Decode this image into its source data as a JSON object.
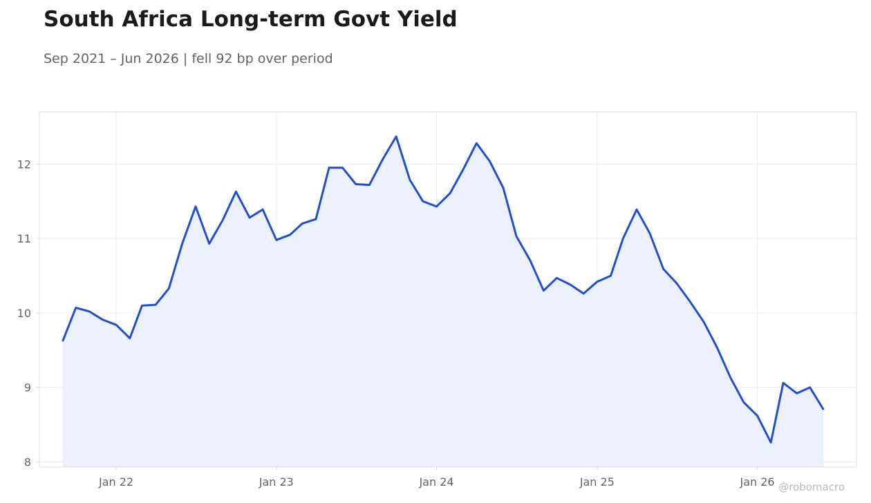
{
  "colors": {
    "line": "#1f4fd1",
    "fill": "#ebf0fb",
    "grid": "#ececec",
    "frame": "#dddddd",
    "text": "#5f6368"
  },
  "watermark": "@robomacro",
  "chart_data": {
    "type": "area",
    "title": "South Africa Long-term Govt Yield",
    "subtitle": "Sep 2021 – Jun 2026 | fell 92 bp over period",
    "xlabel": "",
    "ylabel": "",
    "ylim": [
      7.93,
      12.7
    ],
    "yticks": [
      8,
      9,
      10,
      11,
      12
    ],
    "xlim": [
      "2021-07-10",
      "2026-08-15"
    ],
    "xticks": [
      {
        "date": "2022-01-01",
        "label": "Jan 22"
      },
      {
        "date": "2023-01-01",
        "label": "Jan 23"
      },
      {
        "date": "2024-01-01",
        "label": "Jan 24"
      },
      {
        "date": "2025-01-01",
        "label": "Jan 25"
      },
      {
        "date": "2026-01-01",
        "label": "Jan 26"
      }
    ],
    "grid": true,
    "legend": "none",
    "series": [
      {
        "x": [
          "2021-09-01",
          "2021-10-01",
          "2021-11-01",
          "2021-12-01",
          "2022-01-01",
          "2022-02-01",
          "2022-03-01",
          "2022-04-01",
          "2022-05-01",
          "2022-06-01",
          "2022-07-01",
          "2022-08-01",
          "2022-09-01",
          "2022-10-01",
          "2022-11-01",
          "2022-12-01",
          "2023-01-01",
          "2023-02-01",
          "2023-03-01",
          "2023-04-01",
          "2023-05-01",
          "2023-06-01",
          "2023-07-01",
          "2023-08-01",
          "2023-09-01",
          "2023-10-01",
          "2023-11-01",
          "2023-12-01",
          "2024-01-01",
          "2024-02-01",
          "2024-03-01",
          "2024-04-01",
          "2024-05-01",
          "2024-06-01",
          "2024-07-01",
          "2024-08-01",
          "2024-09-01",
          "2024-10-01",
          "2024-11-01",
          "2024-12-01",
          "2025-01-01",
          "2025-02-01",
          "2025-03-01",
          "2025-04-01",
          "2025-05-01",
          "2025-06-01",
          "2025-07-01",
          "2025-08-01",
          "2025-09-01",
          "2025-10-01",
          "2025-11-01",
          "2025-12-01",
          "2026-01-01",
          "2026-02-01",
          "2026-03-01",
          "2026-04-01",
          "2026-05-01",
          "2026-06-01"
        ],
        "values": [
          9.62,
          10.07,
          10.02,
          9.91,
          9.84,
          9.66,
          10.1,
          10.11,
          10.33,
          10.94,
          11.43,
          10.93,
          11.25,
          11.63,
          11.28,
          11.39,
          10.98,
          11.05,
          11.2,
          11.26,
          11.95,
          11.95,
          11.73,
          11.72,
          12.07,
          12.37,
          11.79,
          11.5,
          11.43,
          11.61,
          11.92,
          12.28,
          12.04,
          11.68,
          11.03,
          10.71,
          10.3,
          10.47,
          10.38,
          10.26,
          10.42,
          10.5,
          11.0,
          11.39,
          11.07,
          10.59,
          10.4,
          10.15,
          9.88,
          9.54,
          9.13,
          8.8,
          8.62,
          8.26,
          9.06,
          8.92,
          9.0,
          8.7
        ]
      }
    ]
  }
}
